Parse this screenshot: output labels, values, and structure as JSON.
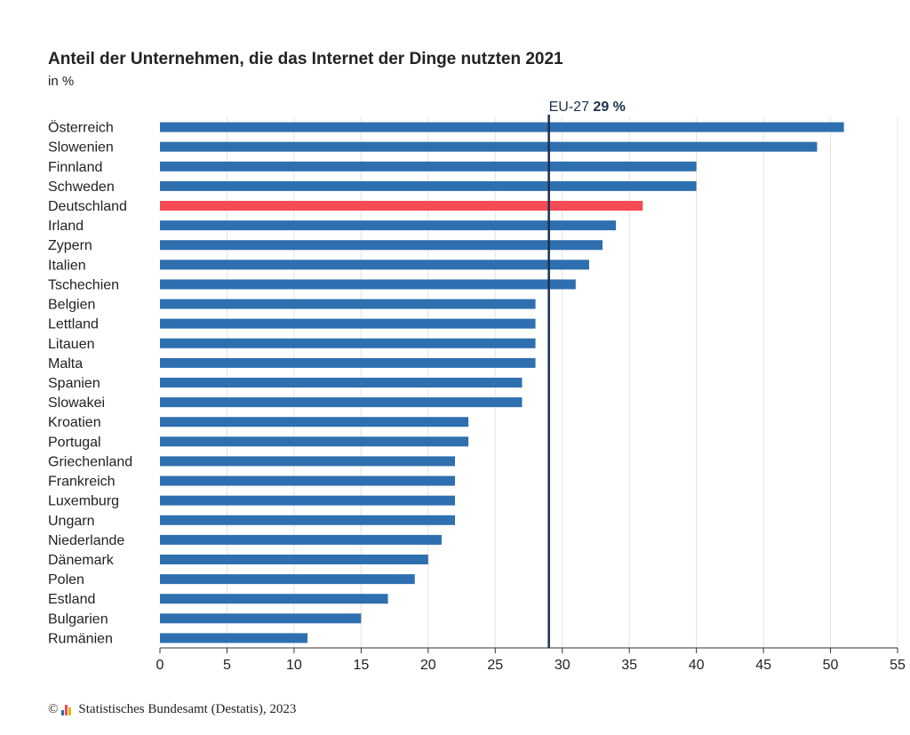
{
  "header": {
    "title": "Anteil der Unternehmen, die das Internet der Dinge nutzten 2021",
    "unit": "in %"
  },
  "footer": {
    "copyright_symbol": "©",
    "source": "Statistisches Bundesamt (Destatis), 2023"
  },
  "colors": {
    "bar": "#2e6fb0",
    "highlight": "#f54b55",
    "reference_line": "#1b2f4e",
    "grid": "#e3e3e3",
    "axis": "#333333"
  },
  "chart_data": {
    "type": "bar",
    "orientation": "horizontal",
    "title": "Anteil der Unternehmen, die das Internet der Dinge nutzten 2021",
    "subtitle": "in %",
    "categories": [
      "Österreich",
      "Slowenien",
      "Finnland",
      "Schweden",
      "Deutschland",
      "Irland",
      "Zypern",
      "Italien",
      "Tschechien",
      "Belgien",
      "Lettland",
      "Litauen",
      "Malta",
      "Spanien",
      "Slowakei",
      "Kroatien",
      "Portugal",
      "Griechenland",
      "Frankreich",
      "Luxemburg",
      "Ungarn",
      "Niederlande",
      "Dänemark",
      "Polen",
      "Estland",
      "Bulgarien",
      "Rumänien"
    ],
    "values": [
      51,
      49,
      40,
      40,
      36,
      34,
      33,
      32,
      31,
      28,
      28,
      28,
      28,
      27,
      27,
      23,
      23,
      22,
      22,
      22,
      22,
      21,
      20,
      19,
      17,
      15,
      11
    ],
    "highlight": "Deutschland",
    "xlim": [
      0,
      55
    ],
    "xticks": [
      0,
      5,
      10,
      15,
      20,
      25,
      30,
      35,
      40,
      45,
      50,
      55
    ],
    "grid": true,
    "reference": {
      "label": "EU-27",
      "value_label": "29 %",
      "value": 29
    }
  }
}
